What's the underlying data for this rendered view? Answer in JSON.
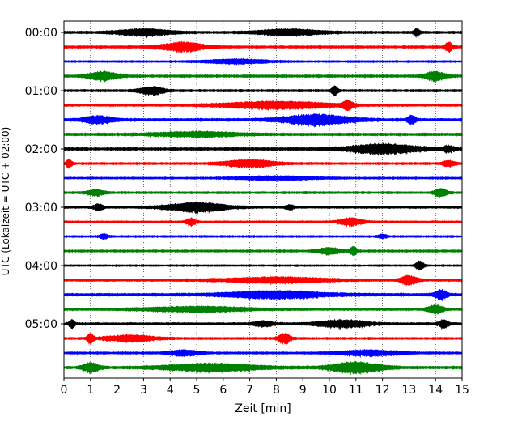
{
  "chart_data": {
    "type": "line",
    "title": "",
    "xlabel": "Zeit  [min]",
    "ylabel": "UTC (Lokalzeit = UTC + 02:00)",
    "xlim": [
      0,
      15
    ],
    "x_ticks": [
      0,
      1,
      2,
      3,
      4,
      5,
      6,
      7,
      8,
      9,
      10,
      11,
      12,
      13,
      14,
      15
    ],
    "y_tick_labels": [
      "00:00",
      "01:00",
      "02:00",
      "03:00",
      "04:00",
      "05:00"
    ],
    "grid": "vertical dotted",
    "legend": "none",
    "trace_interval_minutes": 15,
    "color_cycle": [
      "#000000",
      "#ff0000",
      "#0000ff",
      "#008000"
    ],
    "traces": [
      {
        "start": "00:00",
        "color": "#000000",
        "amplitude": 0.22,
        "bursts": [
          [
            3.0,
            2.5,
            0.55
          ],
          [
            8.5,
            3.0,
            0.5
          ],
          [
            13.3,
            0.3,
            0.6
          ]
        ]
      },
      {
        "start": "00:15",
        "color": "#ff0000",
        "amplitude": 0.22,
        "bursts": [
          [
            4.5,
            2.2,
            0.7
          ],
          [
            14.5,
            0.4,
            0.8
          ]
        ]
      },
      {
        "start": "00:30",
        "color": "#0000ff",
        "amplitude": 0.18,
        "bursts": [
          [
            6.5,
            3.0,
            0.35
          ]
        ]
      },
      {
        "start": "00:45",
        "color": "#008000",
        "amplitude": 0.22,
        "bursts": [
          [
            1.5,
            1.4,
            0.75
          ],
          [
            14.0,
            1.0,
            0.7
          ]
        ]
      },
      {
        "start": "01:00",
        "color": "#000000",
        "amplitude": 0.22,
        "bursts": [
          [
            3.3,
            1.2,
            0.6
          ],
          [
            10.2,
            0.3,
            0.7
          ]
        ]
      },
      {
        "start": "01:15",
        "color": "#ff0000",
        "amplitude": 0.2,
        "bursts": [
          [
            8.0,
            5.5,
            0.6
          ],
          [
            10.7,
            0.5,
            0.7
          ]
        ]
      },
      {
        "start": "01:30",
        "color": "#0000ff",
        "amplitude": 0.25,
        "bursts": [
          [
            1.3,
            1.4,
            0.6
          ],
          [
            9.5,
            3.5,
            0.8
          ],
          [
            13.1,
            0.4,
            0.7
          ]
        ]
      },
      {
        "start": "01:45",
        "color": "#008000",
        "amplitude": 0.25,
        "bursts": [
          [
            5.0,
            4.0,
            0.35
          ]
        ]
      },
      {
        "start": "02:00",
        "color": "#000000",
        "amplitude": 0.25,
        "bursts": [
          [
            12.0,
            3.5,
            0.75
          ],
          [
            14.5,
            0.5,
            0.5
          ]
        ]
      },
      {
        "start": "02:15",
        "color": "#ff0000",
        "amplitude": 0.2,
        "bursts": [
          [
            0.2,
            0.3,
            0.7
          ],
          [
            7.0,
            2.5,
            0.6
          ],
          [
            14.5,
            0.6,
            0.45
          ]
        ]
      },
      {
        "start": "02:30",
        "color": "#0000ff",
        "amplitude": 0.18,
        "bursts": [
          [
            8.0,
            4.0,
            0.3
          ]
        ]
      },
      {
        "start": "02:45",
        "color": "#008000",
        "amplitude": 0.2,
        "bursts": [
          [
            1.2,
            0.8,
            0.5
          ],
          [
            14.2,
            0.6,
            0.7
          ]
        ]
      },
      {
        "start": "03:00",
        "color": "#000000",
        "amplitude": 0.2,
        "bursts": [
          [
            1.3,
            0.5,
            0.5
          ],
          [
            5.0,
            3.0,
            0.75
          ],
          [
            8.5,
            0.4,
            0.4
          ]
        ]
      },
      {
        "start": "03:15",
        "color": "#ff0000",
        "amplitude": 0.18,
        "bursts": [
          [
            4.8,
            0.5,
            0.55
          ],
          [
            10.8,
            1.2,
            0.6
          ]
        ]
      },
      {
        "start": "03:30",
        "color": "#0000ff",
        "amplitude": 0.18,
        "bursts": [
          [
            1.5,
            0.4,
            0.4
          ],
          [
            12.0,
            0.4,
            0.35
          ]
        ]
      },
      {
        "start": "03:45",
        "color": "#008000",
        "amplitude": 0.2,
        "bursts": [
          [
            10.0,
            1.2,
            0.5
          ],
          [
            10.9,
            0.3,
            0.8
          ]
        ]
      },
      {
        "start": "04:00",
        "color": "#000000",
        "amplitude": 0.16,
        "bursts": [
          [
            13.4,
            0.4,
            0.75
          ]
        ]
      },
      {
        "start": "04:15",
        "color": "#ff0000",
        "amplitude": 0.22,
        "bursts": [
          [
            8.0,
            5.0,
            0.45
          ],
          [
            13.0,
            0.8,
            0.7
          ]
        ]
      },
      {
        "start": "04:30",
        "color": "#0000ff",
        "amplitude": 0.25,
        "bursts": [
          [
            8.0,
            5.0,
            0.55
          ],
          [
            14.2,
            0.6,
            0.8
          ]
        ]
      },
      {
        "start": "04:45",
        "color": "#008000",
        "amplitude": 0.22,
        "bursts": [
          [
            5.0,
            5.0,
            0.4
          ],
          [
            14.0,
            0.8,
            0.6
          ]
        ]
      },
      {
        "start": "05:00",
        "color": "#000000",
        "amplitude": 0.22,
        "bursts": [
          [
            0.3,
            0.3,
            0.6
          ],
          [
            7.5,
            1.0,
            0.4
          ],
          [
            10.5,
            2.5,
            0.6
          ],
          [
            14.3,
            0.5,
            0.6
          ]
        ]
      },
      {
        "start": "05:15",
        "color": "#ff0000",
        "amplitude": 0.2,
        "bursts": [
          [
            1.0,
            0.3,
            0.8
          ],
          [
            2.5,
            2.5,
            0.5
          ],
          [
            8.3,
            0.6,
            0.8
          ]
        ]
      },
      {
        "start": "05:30",
        "color": "#0000ff",
        "amplitude": 0.2,
        "bursts": [
          [
            4.5,
            1.5,
            0.45
          ],
          [
            11.5,
            3.0,
            0.45
          ]
        ]
      },
      {
        "start": "05:45",
        "color": "#008000",
        "amplitude": 0.25,
        "bursts": [
          [
            1.0,
            0.8,
            0.75
          ],
          [
            5.5,
            4.5,
            0.6
          ],
          [
            11.0,
            2.5,
            0.85
          ]
        ]
      }
    ]
  }
}
